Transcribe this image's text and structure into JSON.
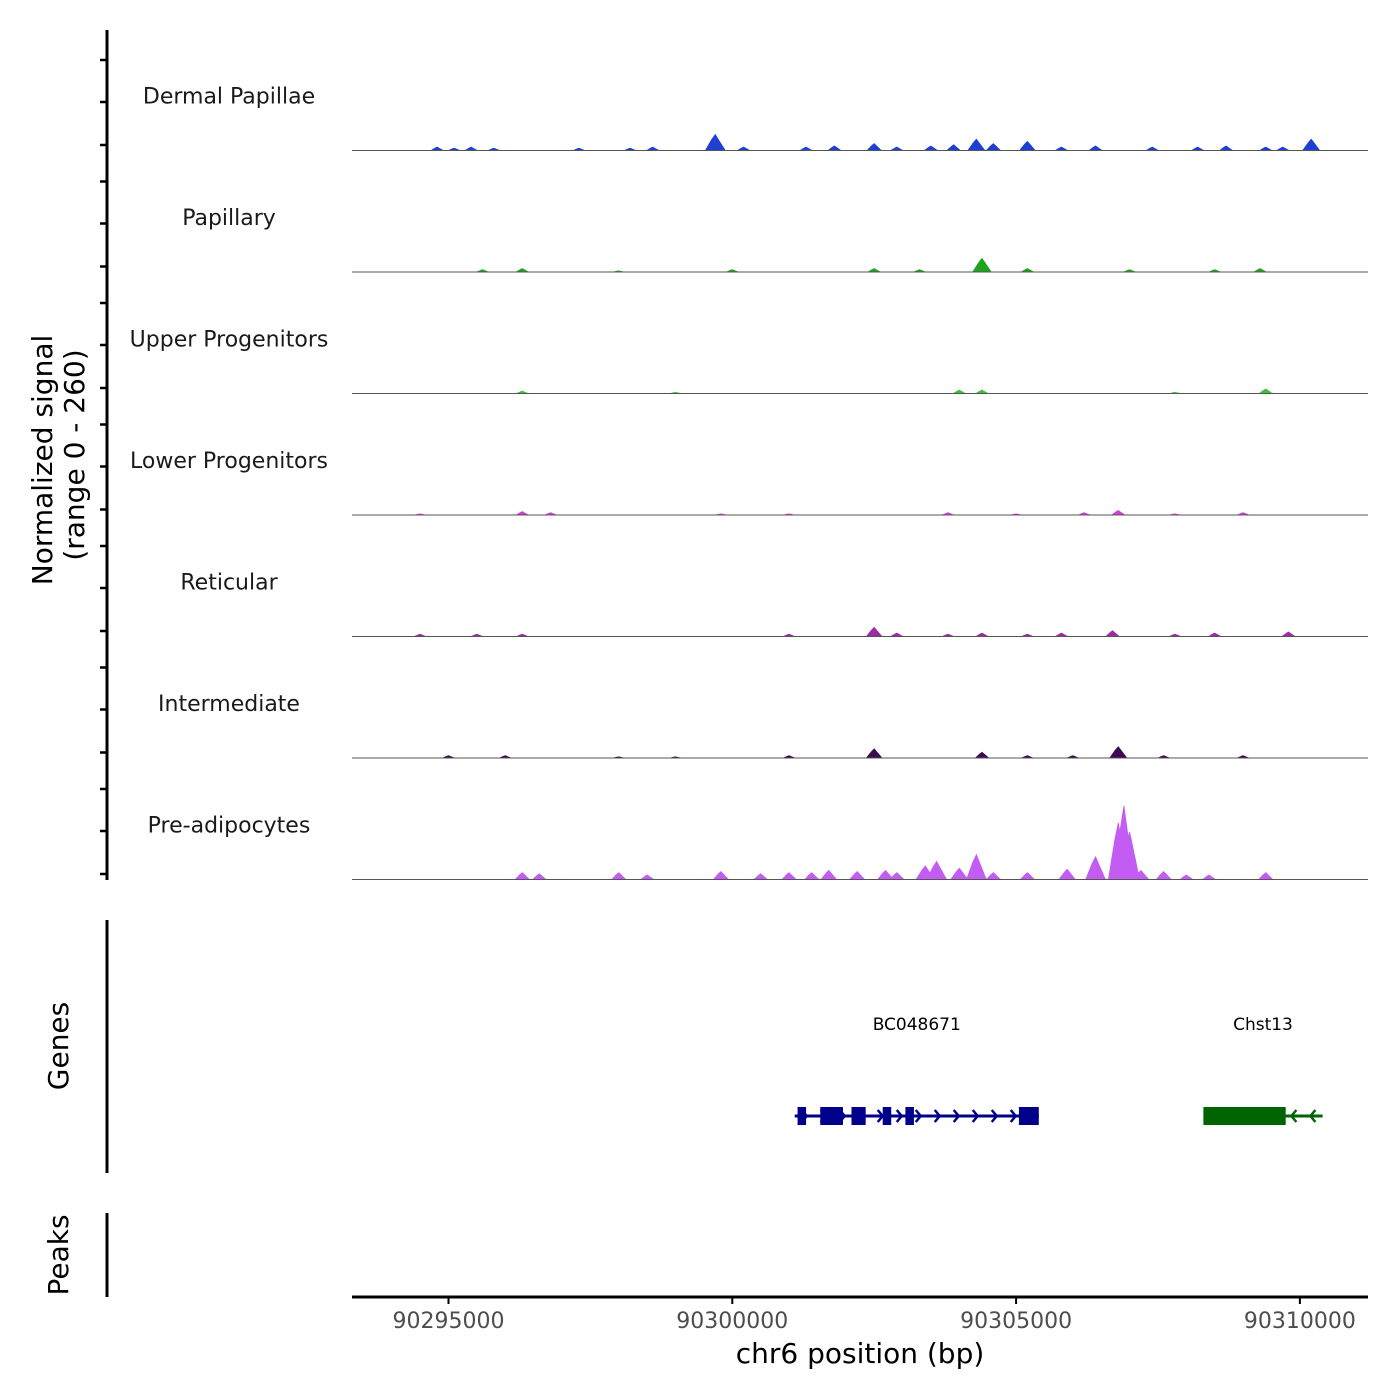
{
  "chart_data": {
    "type": "coverage-track",
    "chromosome": "chr6",
    "xlabel": "chr6 position (bp)",
    "xlim": [
      90293300,
      90311200
    ],
    "x_ticks": [
      90295000,
      90300000,
      90305000,
      90310000
    ],
    "x_tick_labels": [
      "90295000",
      "90300000",
      "90305000",
      "90310000"
    ],
    "ylabel_line1": "Normalized signal",
    "ylabel_line2": "(range 0 - 260)",
    "ylim": [
      0,
      260
    ],
    "tracks": [
      {
        "name": "Dermal Papillae",
        "color": "#1f3fd1",
        "peaks": [
          [
            90294800,
            3
          ],
          [
            90295100,
            2
          ],
          [
            90295400,
            3
          ],
          [
            90295800,
            2
          ],
          [
            90297300,
            2
          ],
          [
            90298200,
            2
          ],
          [
            90298600,
            3
          ],
          [
            90299700,
            14
          ],
          [
            90300200,
            3
          ],
          [
            90301300,
            3
          ],
          [
            90301800,
            4
          ],
          [
            90302500,
            6
          ],
          [
            90302900,
            3
          ],
          [
            90303500,
            4
          ],
          [
            90303900,
            5
          ],
          [
            90304300,
            10
          ],
          [
            90304600,
            6
          ],
          [
            90305200,
            8
          ],
          [
            90305800,
            3
          ],
          [
            90306400,
            4
          ],
          [
            90307400,
            3
          ],
          [
            90308200,
            3
          ],
          [
            90308700,
            4
          ],
          [
            90309400,
            3
          ],
          [
            90309700,
            3
          ],
          [
            90310200,
            10
          ]
        ]
      },
      {
        "name": "Papillary",
        "color": "#1fa31f",
        "peaks": [
          [
            90295600,
            2
          ],
          [
            90296300,
            3
          ],
          [
            90298000,
            1
          ],
          [
            90300000,
            2
          ],
          [
            90302500,
            3
          ],
          [
            90303300,
            2
          ],
          [
            90304400,
            12
          ],
          [
            90305200,
            3
          ],
          [
            90307000,
            2
          ],
          [
            90308500,
            2
          ],
          [
            90309300,
            3
          ]
        ]
      },
      {
        "name": "Upper Progenitors",
        "color": "#3cbf3c",
        "peaks": [
          [
            90296300,
            2
          ],
          [
            90299000,
            1
          ],
          [
            90304000,
            3
          ],
          [
            90304400,
            3
          ],
          [
            90307800,
            1
          ],
          [
            90309400,
            4
          ]
        ]
      },
      {
        "name": "Lower Progenitors",
        "color": "#d23fd2",
        "peaks": [
          [
            90294500,
            1
          ],
          [
            90296300,
            3
          ],
          [
            90296800,
            2
          ],
          [
            90299800,
            1
          ],
          [
            90301000,
            1
          ],
          [
            90303800,
            2
          ],
          [
            90305000,
            1
          ],
          [
            90306200,
            2
          ],
          [
            90306800,
            4
          ],
          [
            90307800,
            1
          ],
          [
            90309000,
            2
          ]
        ]
      },
      {
        "name": "Reticular",
        "color": "#9e2aa8",
        "peaks": [
          [
            90294500,
            2
          ],
          [
            90295500,
            2
          ],
          [
            90296300,
            2
          ],
          [
            90301000,
            2
          ],
          [
            90302500,
            8
          ],
          [
            90302900,
            3
          ],
          [
            90303800,
            2
          ],
          [
            90304400,
            3
          ],
          [
            90305200,
            2
          ],
          [
            90305800,
            3
          ],
          [
            90306700,
            5
          ],
          [
            90307800,
            2
          ],
          [
            90308500,
            3
          ],
          [
            90309800,
            4
          ]
        ]
      },
      {
        "name": "Intermediate",
        "color": "#3d0a4f",
        "peaks": [
          [
            90295000,
            2
          ],
          [
            90296000,
            2
          ],
          [
            90298000,
            1
          ],
          [
            90299000,
            1
          ],
          [
            90301000,
            2
          ],
          [
            90302500,
            8
          ],
          [
            90304400,
            5
          ],
          [
            90305200,
            2
          ],
          [
            90306000,
            2
          ],
          [
            90306800,
            10
          ],
          [
            90307600,
            2
          ],
          [
            90309000,
            2
          ]
        ]
      },
      {
        "name": "Pre-adipocytes",
        "color": "#c35cf2",
        "peaks": [
          [
            90296300,
            6
          ],
          [
            90296600,
            5
          ],
          [
            90298000,
            6
          ],
          [
            90298500,
            4
          ],
          [
            90299800,
            7
          ],
          [
            90300500,
            5
          ],
          [
            90301000,
            6
          ],
          [
            90301400,
            6
          ],
          [
            90301700,
            8
          ],
          [
            90302200,
            7
          ],
          [
            90302700,
            8
          ],
          [
            90302900,
            6
          ],
          [
            90303400,
            12
          ],
          [
            90303600,
            16
          ],
          [
            90304000,
            10
          ],
          [
            90304300,
            22
          ],
          [
            90304600,
            6
          ],
          [
            90305200,
            6
          ],
          [
            90305900,
            9
          ],
          [
            90306400,
            20
          ],
          [
            90306800,
            50
          ],
          [
            90306900,
            65
          ],
          [
            90307000,
            42
          ],
          [
            90307200,
            8
          ],
          [
            90307600,
            7
          ],
          [
            90308000,
            4
          ],
          [
            90308400,
            4
          ],
          [
            90309400,
            6
          ]
        ]
      }
    ],
    "genes": [
      {
        "name": "BC048671",
        "start": 90301100,
        "end": 90305400,
        "strand": "+",
        "color": "#00008b",
        "exons": [
          [
            90301150,
            90301300
          ],
          [
            90301550,
            90301950
          ],
          [
            90302100,
            90302350
          ],
          [
            90302650,
            90302800
          ],
          [
            90303050,
            90303200
          ],
          [
            90305050,
            90305400
          ]
        ]
      },
      {
        "name": "Chst13",
        "start": 90308300,
        "end": 90310400,
        "strand": "-",
        "color": "#006400",
        "exons": [
          [
            90308300,
            90309750
          ]
        ]
      }
    ],
    "lower_panels": [
      "Genes",
      "Peaks"
    ]
  }
}
